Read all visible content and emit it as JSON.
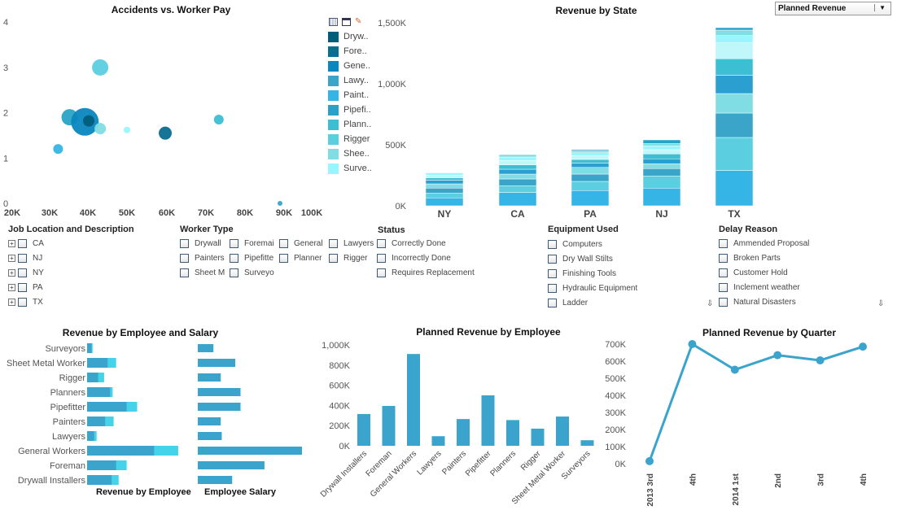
{
  "dropdown": {
    "selected": "Planned Revenue",
    "arrow": "▼"
  },
  "colors": {
    "bar": "#3aa4cc",
    "bar_light": "#45d3ea",
    "line": "#3aa4cc"
  },
  "legend_icons": [
    "grid-icon",
    "window-icon",
    "pencil-icon"
  ],
  "chart_data": [
    {
      "id": "scatter",
      "type": "scatter",
      "title": "Accidents vs. Worker Pay",
      "x_ticks": [
        "20K",
        "30K",
        "40K",
        "50K",
        "60K",
        "70K",
        "80K",
        "90K",
        "100K"
      ],
      "y_ticks": [
        "0",
        "1",
        "2",
        "3",
        "4"
      ],
      "xlim": [
        20,
        100
      ],
      "ylim": [
        0,
        4
      ],
      "legend": [
        {
          "label": "Dryw..",
          "color": "#005e7a"
        },
        {
          "label": "Fore..",
          "color": "#0a6e91"
        },
        {
          "label": "Gene..",
          "color": "#0a87bf"
        },
        {
          "label": "Lawy..",
          "color": "#3aa4c9"
        },
        {
          "label": "Paint..",
          "color": "#35b5e5"
        },
        {
          "label": "Pipefi..",
          "color": "#29a3c5"
        },
        {
          "label": "Plann..",
          "color": "#3cbfd2"
        },
        {
          "label": "Rigger",
          "color": "#5bcfe0"
        },
        {
          "label": "Shee..",
          "color": "#80dde3"
        },
        {
          "label": "Surve..",
          "color": "#99f5ff"
        }
      ],
      "points": [
        {
          "series": "Rigger",
          "x": 43,
          "y": 3.0,
          "size": 10
        },
        {
          "series": "Pipefitter",
          "x": 35,
          "y": 1.9,
          "size": 10
        },
        {
          "series": "General Workers",
          "x": 39,
          "y": 1.8,
          "size": 17
        },
        {
          "series": "Drywall Installers",
          "x": 40,
          "y": 1.82,
          "size": 7
        },
        {
          "series": "Sheet Metal Worker",
          "x": 43,
          "y": 1.65,
          "size": 7
        },
        {
          "series": "Surveyors",
          "x": 50,
          "y": 1.62,
          "size": 4
        },
        {
          "series": "Foreman",
          "x": 60,
          "y": 1.55,
          "size": 8
        },
        {
          "series": "Planners",
          "x": 74,
          "y": 1.85,
          "size": 6
        },
        {
          "series": "Painters",
          "x": 32,
          "y": 1.2,
          "size": 6
        },
        {
          "series": "Lawyers",
          "x": 90,
          "y": 0,
          "size": 3
        }
      ]
    },
    {
      "id": "state",
      "type": "bar",
      "stacked": true,
      "title": "Revenue by State",
      "categories": [
        "NY",
        "CA",
        "PA",
        "NJ",
        "TX"
      ],
      "y_ticks": [
        "0K",
        "500K",
        "1,000K",
        "1,500K"
      ],
      "ylim": [
        0,
        1500
      ],
      "segment_colors": [
        "#35b5e5",
        "#5bcfe0",
        "#3aa4c9",
        "#80dde3",
        "#2a9fd0",
        "#3cbfd2",
        "#c0f7fb",
        "#99f5ff",
        "#80dde3",
        "#29a3c5"
      ],
      "stacks": [
        [
          65,
          40,
          40,
          35,
          30,
          20,
          20,
          20
        ],
        [
          110,
          55,
          55,
          40,
          40,
          35,
          35,
          30,
          20
        ],
        [
          125,
          75,
          60,
          55,
          35,
          30,
          30,
          25,
          15,
          10
        ],
        [
          145,
          100,
          60,
          40,
          40,
          40,
          35,
          30,
          20,
          30
        ],
        [
          290,
          270,
          200,
          160,
          150,
          135,
          130,
          60,
          45,
          20
        ]
      ]
    },
    {
      "id": "emp_salary",
      "type": "bar",
      "orientation": "horizontal",
      "title": "Revenue by Employee and Salary",
      "categories": [
        "Surveyors",
        "Sheet Metal Worker",
        "Rigger",
        "Planners",
        "Pipefitter",
        "Painters",
        "Lawyers",
        "General Workers",
        "Foreman",
        "Drywall Installers"
      ],
      "revenue_label": "Revenue by Employee",
      "salary_label": "Employee Salary",
      "revenue_actual": [
        45,
        205,
        110,
        230,
        395,
        180,
        70,
        670,
        290,
        245
      ],
      "revenue_planned": [
        55,
        290,
        170,
        255,
        500,
        265,
        95,
        910,
        395,
        315
      ],
      "salary_relative": [
        15,
        36,
        22,
        41,
        41,
        22,
        23,
        100,
        64,
        33
      ]
    },
    {
      "id": "planned_emp",
      "type": "bar",
      "title": "Planned Revenue by Employee",
      "categories": [
        "Drywall Installers",
        "Foreman",
        "General Workers",
        "Lawyers",
        "Painters",
        "Pipefitter",
        "Planners",
        "Rigger",
        "Sheet Metal Worker",
        "Surveyors"
      ],
      "values": [
        315,
        395,
        910,
        95,
        265,
        500,
        255,
        170,
        290,
        55
      ],
      "y_ticks": [
        "0K",
        "200K",
        "400K",
        "600K",
        "800K",
        "1,000K"
      ],
      "ylim": [
        0,
        1000
      ]
    },
    {
      "id": "quarter",
      "type": "line",
      "title": "Planned Revenue by Quarter",
      "categories": [
        "2013 3rd",
        "4th",
        "2014 1st",
        "2nd",
        "3rd",
        "4th"
      ],
      "values": [
        15,
        700,
        550,
        635,
        605,
        685
      ],
      "y_ticks": [
        "0K",
        "100K",
        "200K",
        "300K",
        "400K",
        "500K",
        "600K",
        "700K"
      ],
      "ylim": [
        0,
        700
      ]
    }
  ],
  "filters": {
    "location": {
      "title": "Job Location and Description",
      "items": [
        "CA",
        "NJ",
        "NY",
        "PA",
        "TX"
      ]
    },
    "worker_type": {
      "title": "Worker Type",
      "items": [
        "Drywall",
        "Foremai",
        "General",
        "Lawyers",
        "Painters",
        "Pipefitte",
        "Planner",
        "Rigger",
        "Sheet M",
        "Surveyo"
      ]
    },
    "status": {
      "title": "Status",
      "items": [
        "Correctly Done",
        "Incorrectly Done",
        "Requires Replacement"
      ]
    },
    "equipment": {
      "title": "Equipment Used",
      "items": [
        "Computers",
        "Dry Wall Stilts",
        "Finishing Tools",
        "Hydraulic Equipment",
        "Ladder"
      ]
    },
    "delay": {
      "title": "Delay Reason",
      "items": [
        "Ammended Proposal",
        "Broken Parts",
        "Customer Hold",
        "Inclement weather",
        "Natural Disasters"
      ]
    },
    "scroll_arrow": "⇩"
  }
}
